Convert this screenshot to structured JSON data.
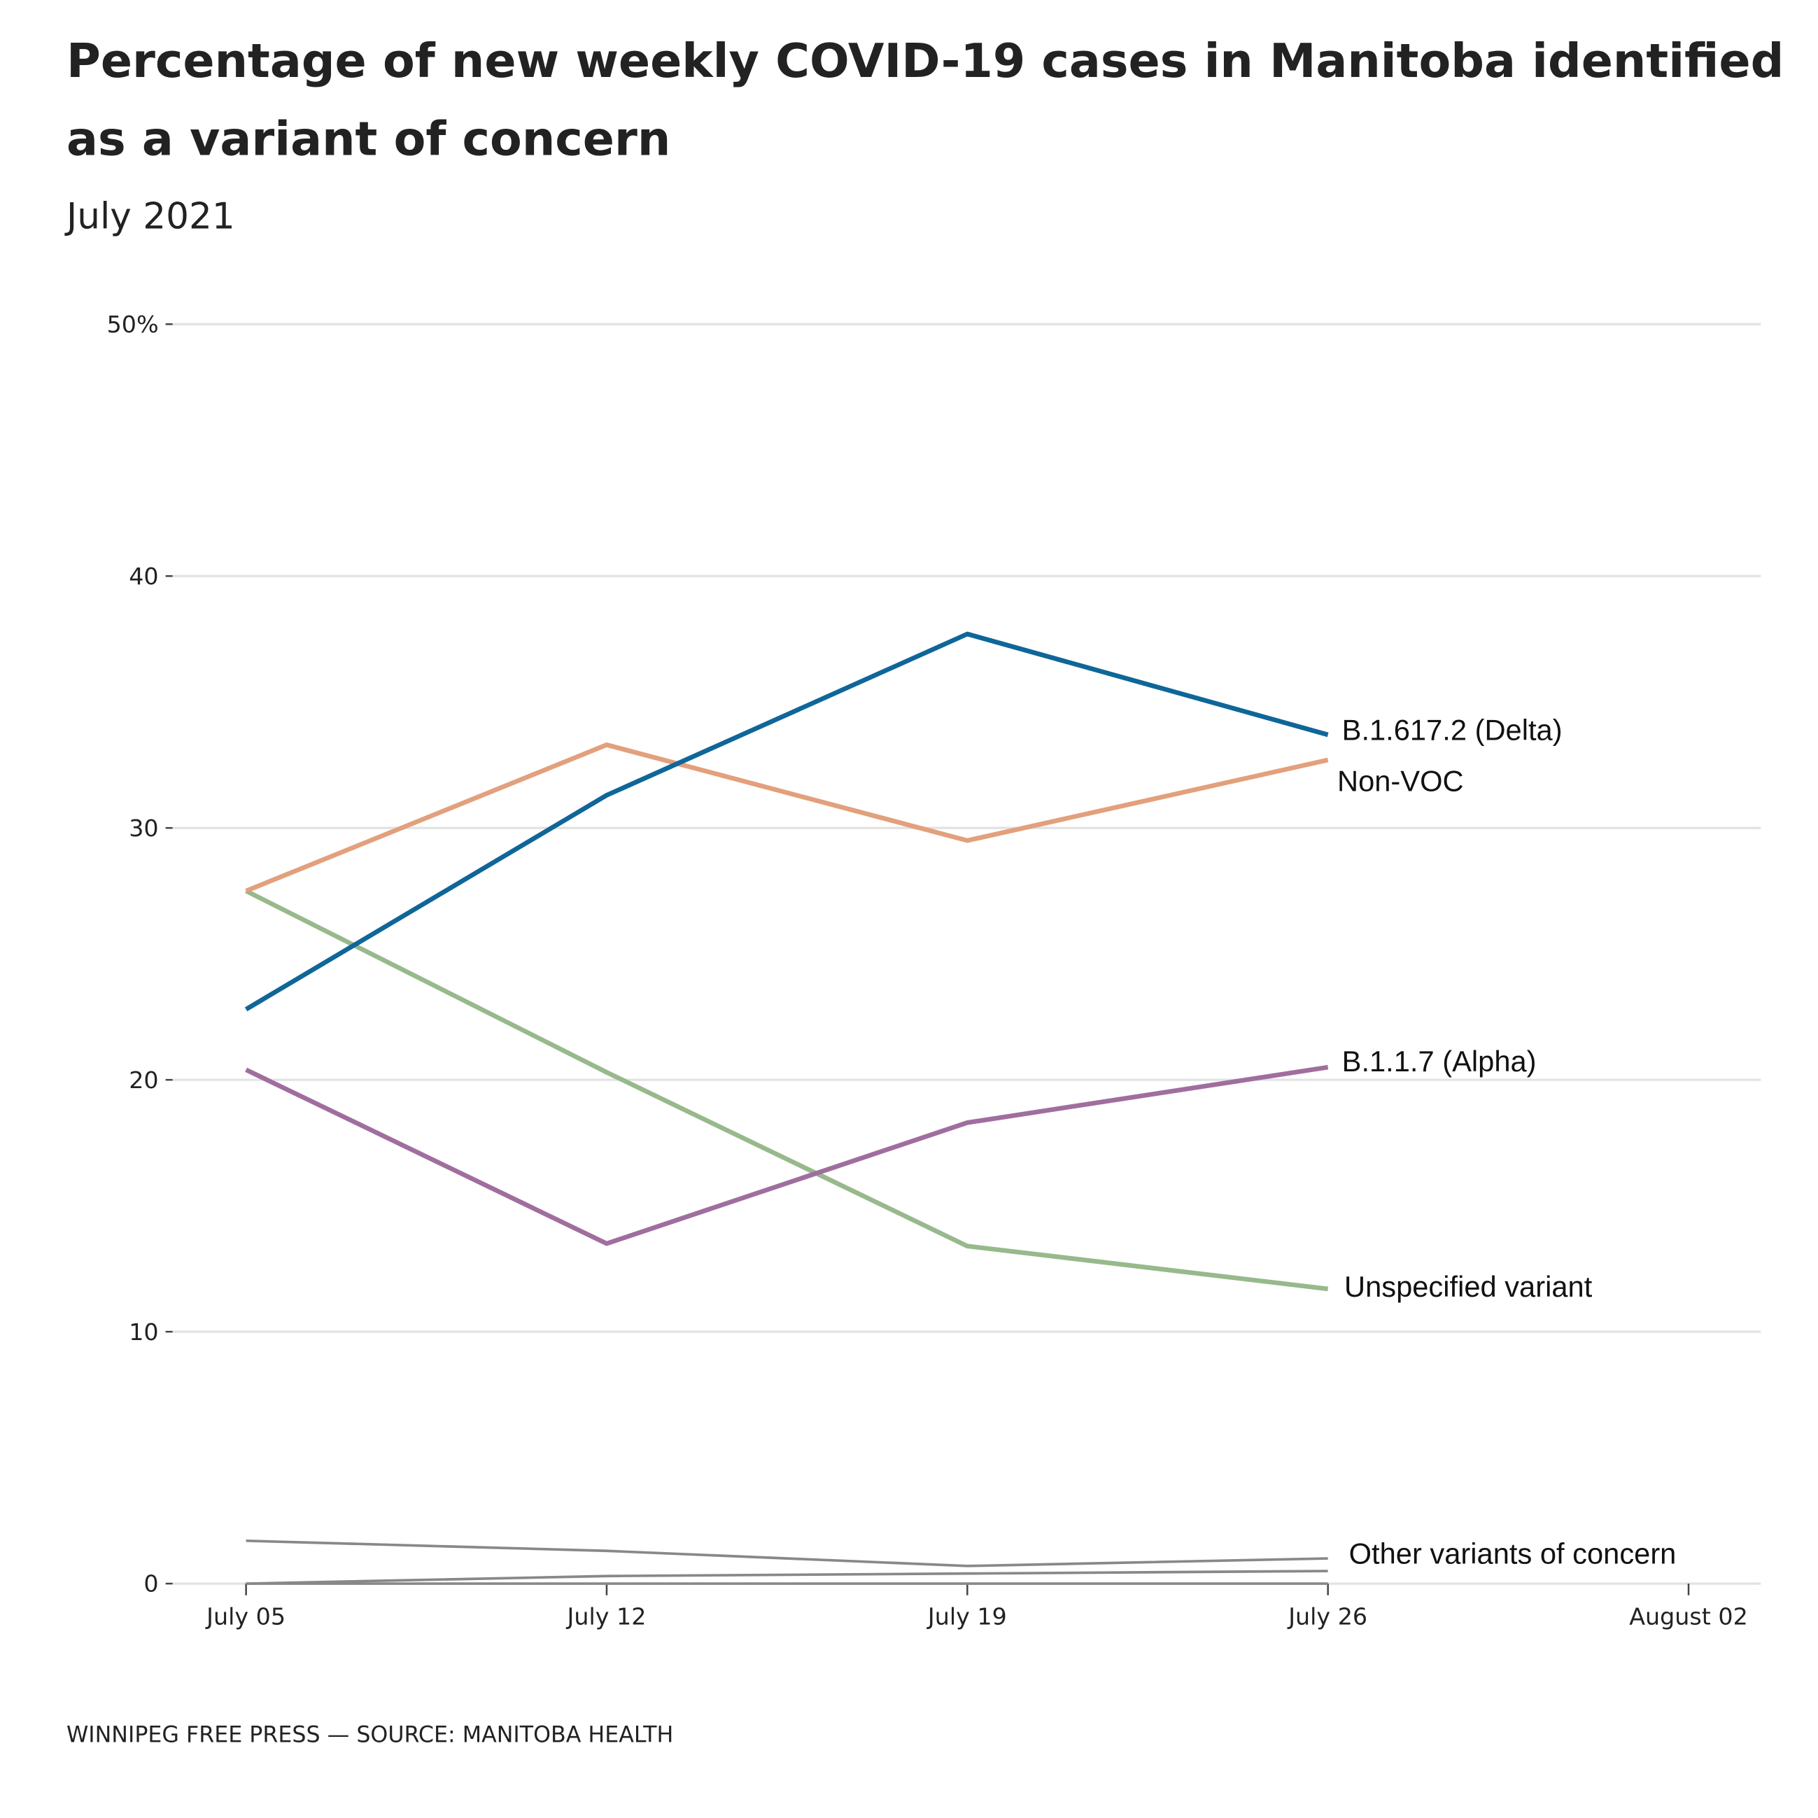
{
  "chart_data": {
    "type": "line",
    "title": "Percentage of new weekly COVID-19 cases in Manitoba identified as a variant of concern",
    "title_lines": [
      "Percentage of new weekly COVID-19 cases in Manitoba identified",
      "as a variant of concern"
    ],
    "subtitle": "July 2021",
    "x": [
      "July 05",
      "July 12",
      "July 19",
      "July 26"
    ],
    "x_ticks": [
      "July 05",
      "July 12",
      "July 19",
      "July 26",
      "August 02"
    ],
    "y_ticks": [
      "0",
      "10",
      "20",
      "30",
      "40",
      "50%"
    ],
    "ylim": [
      0,
      50
    ],
    "grid": true,
    "legend": "direct labels at line ends",
    "series": [
      {
        "name": "B.1.617.2 (Delta)",
        "color": "#0f6698",
        "values": [
          22.8,
          31.3,
          37.7,
          33.7
        ]
      },
      {
        "name": "Non-VOC",
        "color": "#e2a07c",
        "values": [
          27.5,
          33.3,
          29.5,
          32.7
        ]
      },
      {
        "name": "B.1.1.7 (Alpha)",
        "color": "#a06e9e",
        "values": [
          20.4,
          13.5,
          18.3,
          20.5
        ]
      },
      {
        "name": "Unspecified variant",
        "color": "#97b98c",
        "values": [
          27.5,
          20.3,
          13.4,
          11.7
        ]
      },
      {
        "name": "Other variants of concern",
        "color": "#888888",
        "values": [
          1.7,
          1.3,
          0.7,
          1.0
        ]
      },
      {
        "color": "#888888",
        "values": [
          0,
          0.3,
          0.4,
          0.5
        ]
      },
      {
        "color": "#888888",
        "values": [
          0,
          0,
          0,
          0
        ]
      }
    ],
    "source": "WINNIPEG FREE PRESS — SOURCE: MANITOBA HEALTH"
  }
}
